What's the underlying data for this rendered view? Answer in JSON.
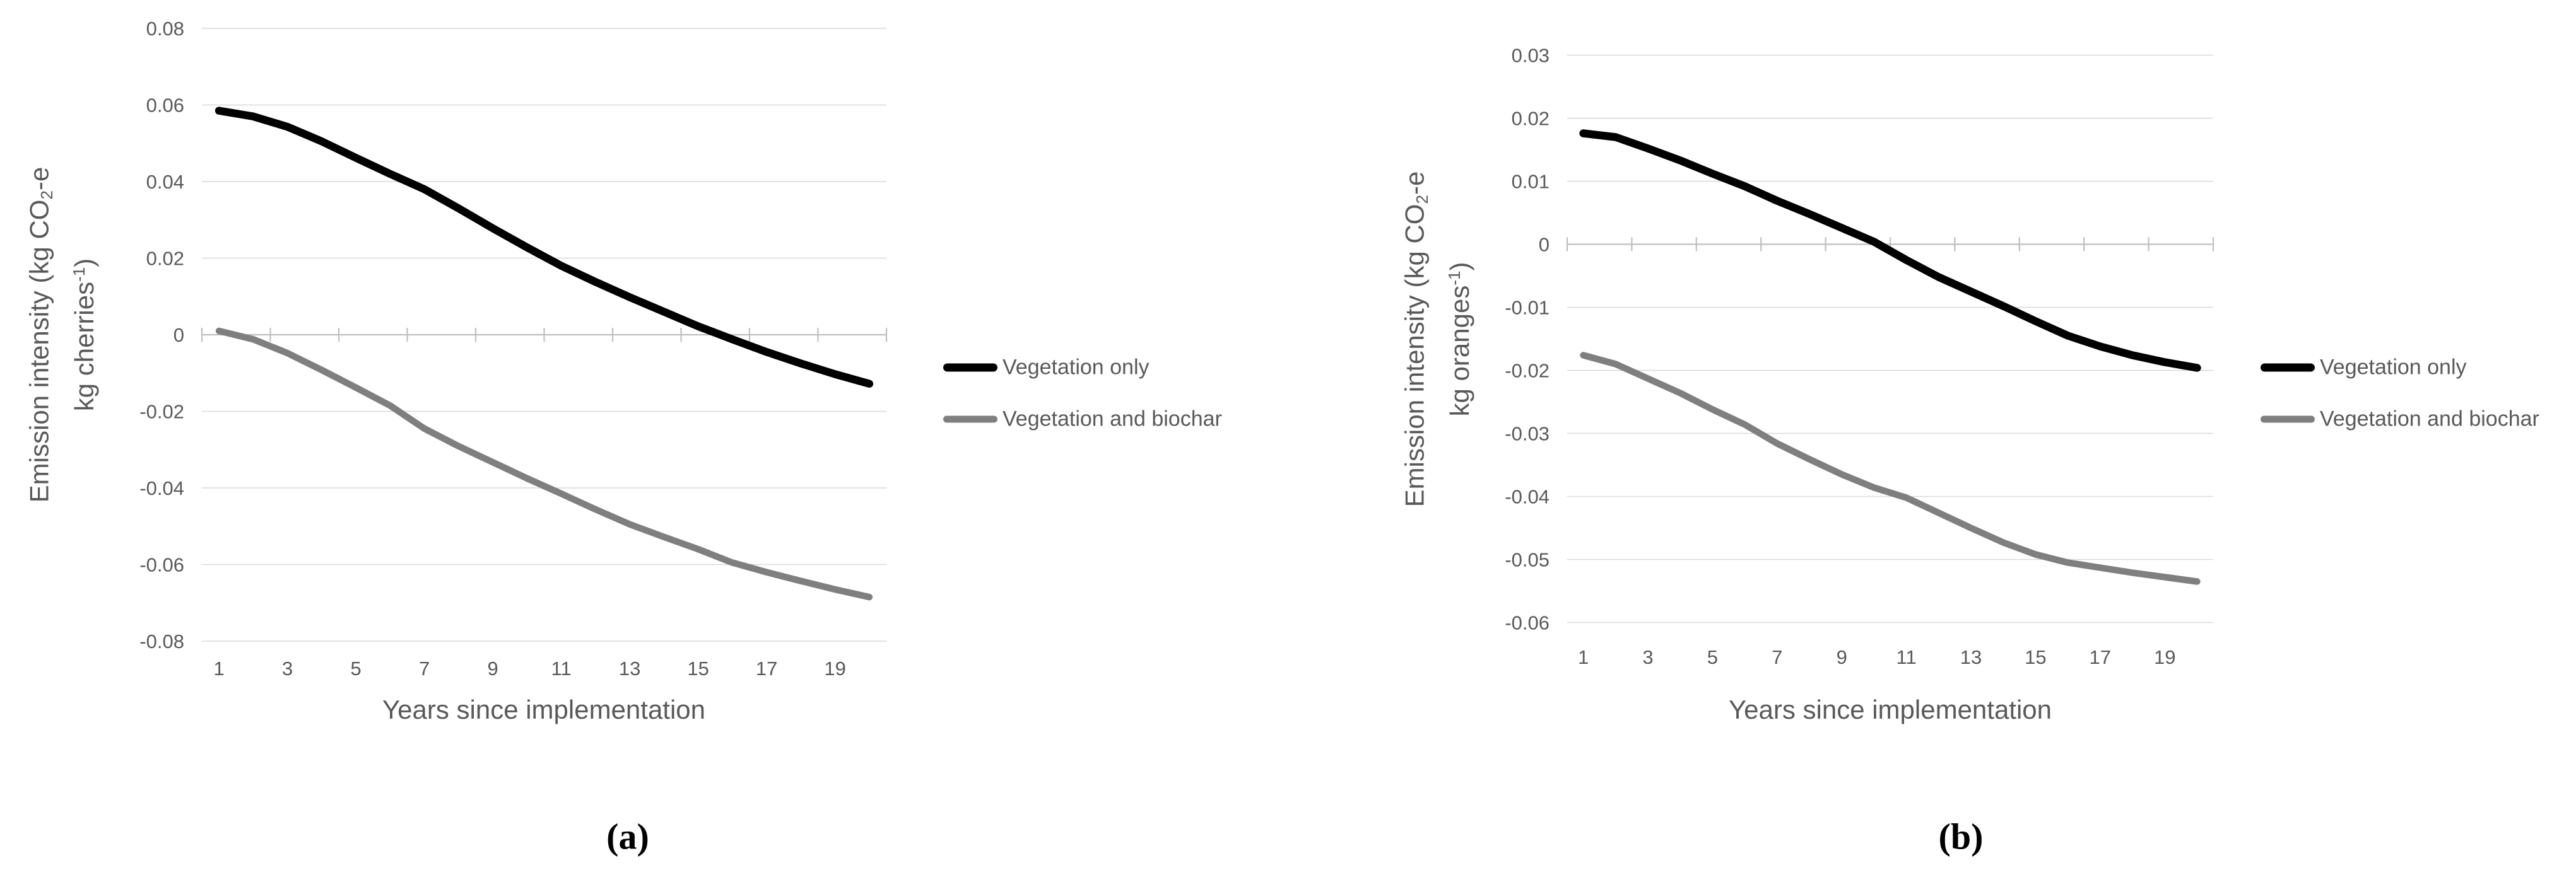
{
  "figure": {
    "background": "#ffffff",
    "text_color": "#595959",
    "grid_color": "#d9d9d9",
    "axis_color": "#bfbfbf"
  },
  "captions": {
    "a": {
      "pre": "(",
      "label": "a",
      "post": ")"
    },
    "b": {
      "pre": "(",
      "label": "b",
      "post": ")"
    }
  },
  "chart_data": [
    {
      "id": "a",
      "type": "line",
      "title": "",
      "xlabel": "Years since implementation",
      "ylabel_line1": {
        "pre": "Emission intensity (kg CO",
        "sub": "2",
        "post": "-e"
      },
      "ylabel_line2": {
        "pre": "kg cherries",
        "sup": "-1",
        "post": ")"
      },
      "x": [
        1,
        2,
        3,
        4,
        5,
        6,
        7,
        8,
        9,
        10,
        11,
        12,
        13,
        14,
        15,
        16,
        17,
        18,
        19,
        20
      ],
      "x_tick_labels": [
        "1",
        "3",
        "5",
        "7",
        "9",
        "11",
        "13",
        "15",
        "17",
        "19"
      ],
      "ylim": [
        -0.08,
        0.08
      ],
      "grid": true,
      "legend_position": "right",
      "y_ticks": [
        {
          "label": "0.08",
          "value": 0.08
        },
        {
          "label": "0.06",
          "value": 0.06
        },
        {
          "label": "0.04",
          "value": 0.04
        },
        {
          "label": "0.02",
          "value": 0.02
        },
        {
          "label": "0",
          "value": 0
        },
        {
          "label": "-0.02",
          "value": -0.02
        },
        {
          "label": "-0.04",
          "value": -0.04
        },
        {
          "label": "-0.06",
          "value": -0.06
        },
        {
          "label": "-0.08",
          "value": -0.08
        }
      ],
      "series": [
        {
          "name": "Vegetation only",
          "color": "#000000",
          "values": [
            0.0585,
            0.057,
            0.0543,
            0.0505,
            0.0462,
            0.042,
            0.038,
            0.033,
            0.0278,
            0.0228,
            0.018,
            0.0138,
            0.0098,
            0.006,
            0.0022,
            -0.0012,
            -0.0045,
            -0.0075,
            -0.0103,
            -0.0128
          ]
        },
        {
          "name": "Vegetation and biochar",
          "color": "#7f7f7f",
          "values": [
            0.001,
            -0.0012,
            -0.0048,
            -0.0092,
            -0.0138,
            -0.0185,
            -0.0245,
            -0.0291,
            -0.0333,
            -0.0375,
            -0.0415,
            -0.0456,
            -0.0495,
            -0.0528,
            -0.056,
            -0.0595,
            -0.062,
            -0.0643,
            -0.0665,
            -0.0685
          ]
        }
      ]
    },
    {
      "id": "b",
      "type": "line",
      "title": "",
      "xlabel": "Years since implementation",
      "ylabel_line1": {
        "pre": "Emission intensity (kg CO",
        "sub": "2",
        "post": "-e"
      },
      "ylabel_line2": {
        "pre": "kg oranges",
        "sup": "-1",
        "post": ")"
      },
      "x": [
        1,
        2,
        3,
        4,
        5,
        6,
        7,
        8,
        9,
        10,
        11,
        12,
        13,
        14,
        15,
        16,
        17,
        18,
        19,
        20
      ],
      "x_tick_labels": [
        "1",
        "3",
        "5",
        "7",
        "9",
        "11",
        "13",
        "15",
        "17",
        "19"
      ],
      "ylim": [
        -0.06,
        0.03
      ],
      "grid": true,
      "legend_position": "right",
      "y_ticks": [
        {
          "label": "0.03",
          "value": 0.03
        },
        {
          "label": "0.02",
          "value": 0.02
        },
        {
          "label": "0.01",
          "value": 0.01
        },
        {
          "label": "0",
          "value": 0
        },
        {
          "label": "-0.01",
          "value": -0.01
        },
        {
          "label": "-0.02",
          "value": -0.02
        },
        {
          "label": "-0.03",
          "value": -0.03
        },
        {
          "label": "-0.04",
          "value": -0.04
        },
        {
          "label": "-0.05",
          "value": -0.05
        },
        {
          "label": "-0.06",
          "value": -0.06
        }
      ],
      "series": [
        {
          "name": "Vegetation only",
          "color": "#000000",
          "values": [
            0.0176,
            0.017,
            0.0152,
            0.0133,
            0.0112,
            0.0092,
            0.0069,
            0.0048,
            0.0026,
            0.0004,
            -0.0025,
            -0.0052,
            -0.0075,
            -0.0098,
            -0.0122,
            -0.0145,
            -0.0162,
            -0.0176,
            -0.0187,
            -0.0196
          ]
        },
        {
          "name": "Vegetation and biochar",
          "color": "#7f7f7f",
          "values": [
            -0.0176,
            -0.019,
            -0.0213,
            -0.0236,
            -0.0262,
            -0.0286,
            -0.0316,
            -0.0341,
            -0.0365,
            -0.0386,
            -0.0402,
            -0.0426,
            -0.045,
            -0.0473,
            -0.0492,
            -0.0505,
            -0.0513,
            -0.0521,
            -0.0528,
            -0.0535
          ]
        }
      ]
    }
  ]
}
